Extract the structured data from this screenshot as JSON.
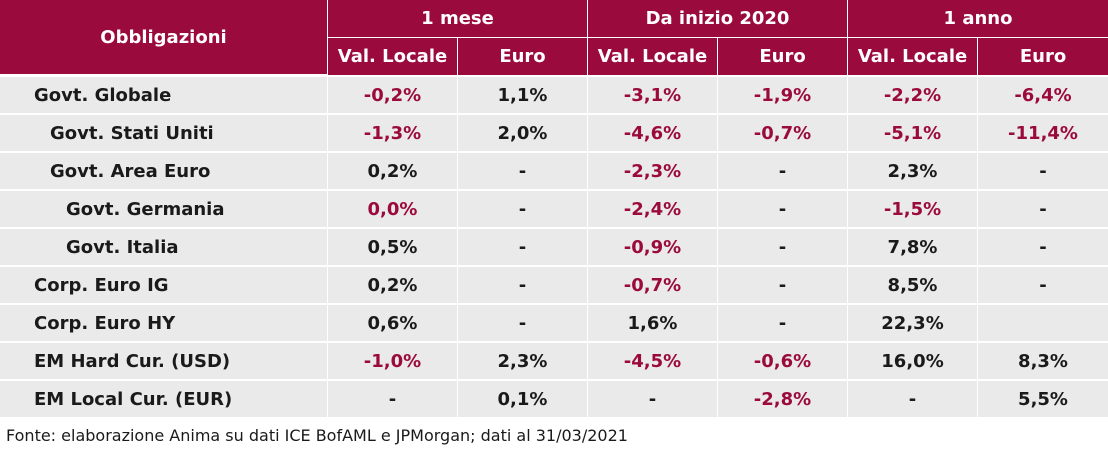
{
  "header": {
    "row_label": "Obbligazioni",
    "groups": [
      "1 mese",
      "Da inizio 2020",
      "1 anno"
    ],
    "subcolumns": [
      "Val. Locale",
      "Euro",
      "Val. Locale",
      "Euro",
      "Val. Locale",
      "Euro"
    ]
  },
  "rows": [
    {
      "name": "Govt. Globale",
      "indent": 0,
      "values": [
        "-0,2%",
        "1,1%",
        "-3,1%",
        "-1,9%",
        "-2,2%",
        "-6,4%"
      ]
    },
    {
      "name": "Govt. Stati Uniti",
      "indent": 1,
      "values": [
        "-1,3%",
        "2,0%",
        "-4,6%",
        "-0,7%",
        "-5,1%",
        "-11,4%"
      ]
    },
    {
      "name": "Govt. Area Euro",
      "indent": 1,
      "values": [
        "0,2%",
        "-",
        "-2,3%",
        "-",
        "2,3%",
        "-"
      ]
    },
    {
      "name": "Govt. Germania",
      "indent": 2,
      "values": [
        "0,0%",
        "-",
        "-2,4%",
        "-",
        "-1,5%",
        "-"
      ]
    },
    {
      "name": "Govt. Italia",
      "indent": 2,
      "values": [
        "0,5%",
        "-",
        "-0,9%",
        "-",
        "7,8%",
        "-"
      ]
    },
    {
      "name": "Corp. Euro IG",
      "indent": 0,
      "values": [
        "0,2%",
        "-",
        "-0,7%",
        "-",
        "8,5%",
        "-"
      ]
    },
    {
      "name": "Corp. Euro HY",
      "indent": 0,
      "values": [
        "0,6%",
        "-",
        "1,6%",
        "-",
        "22,3%",
        ""
      ]
    },
    {
      "name": "EM Hard Cur. (USD)",
      "indent": 0,
      "values": [
        "-1,0%",
        "2,3%",
        "-4,5%",
        "-0,6%",
        "16,0%",
        "8,3%"
      ]
    },
    {
      "name": "EM Local Cur. (EUR)",
      "indent": 0,
      "values": [
        "-",
        "0,1%",
        "-",
        "-2,8%",
        "-",
        "5,5%"
      ]
    }
  ],
  "neg_cells": [
    [
      1,
      0,
      1,
      1,
      1,
      1
    ],
    [
      1,
      0,
      1,
      1,
      1,
      1
    ],
    [
      0,
      0,
      1,
      0,
      0,
      0
    ],
    [
      1,
      0,
      1,
      0,
      1,
      0
    ],
    [
      0,
      0,
      1,
      0,
      0,
      0
    ],
    [
      0,
      0,
      1,
      0,
      0,
      0
    ],
    [
      0,
      0,
      0,
      0,
      0,
      0
    ],
    [
      1,
      0,
      1,
      1,
      0,
      0
    ],
    [
      0,
      0,
      0,
      1,
      0,
      0
    ]
  ],
  "colors": {
    "header_bg": "#9b0a3c",
    "negative_text": "#9b0a3c",
    "row_bg": "#eaeaea",
    "text": "#1a1a1a"
  },
  "footer": {
    "source": "Fonte: elaborazione Anima su dati ICE BofAML e JPMorgan; dati al 31/03/2021"
  }
}
